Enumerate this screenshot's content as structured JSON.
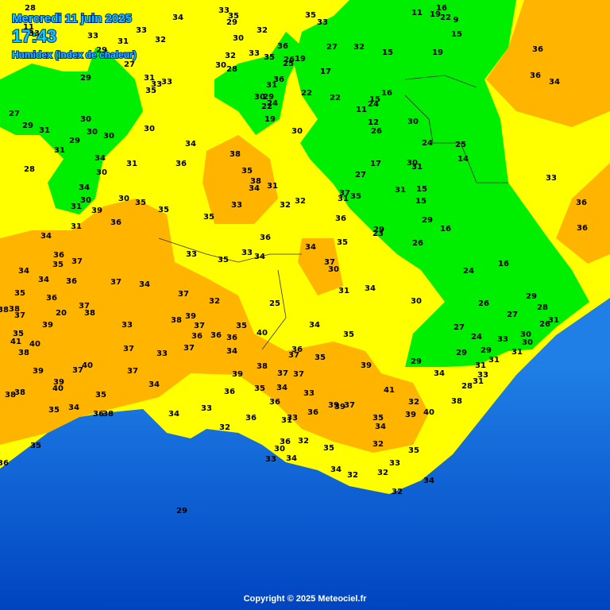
{
  "header": {
    "title": "Mercredi 11 juin 2025",
    "time": "17:43",
    "subtitle": "Humidex (Index de chaleur)"
  },
  "stations": [
    28,
    34,
    33,
    35,
    29,
    32,
    35,
    33,
    11,
    19,
    16,
    22,
    9,
    15,
    19,
    15,
    32,
    27,
    17,
    22,
    22,
    11,
    24,
    15,
    16,
    12,
    26,
    30,
    24,
    25,
    14,
    30,
    31,
    17,
    27,
    15,
    15,
    31,
    29,
    29,
    23,
    26,
    16,
    16,
    24,
    26,
    27,
    29,
    28,
    26,
    31,
    27,
    24,
    33,
    30,
    30,
    29,
    29,
    31,
    31,
    31,
    33,
    31,
    28,
    34,
    29,
    36,
    36,
    34,
    33,
    36,
    36,
    11,
    33,
    33,
    31,
    33,
    32,
    30,
    33,
    32,
    30,
    28,
    35,
    36,
    26,
    19,
    25,
    29,
    27,
    29,
    31,
    35,
    33,
    33,
    36,
    31,
    30,
    29,
    24,
    22,
    19,
    30,
    27,
    29,
    31,
    30,
    30,
    30,
    30,
    29,
    31,
    34,
    30,
    31,
    34,
    36,
    38,
    35,
    38,
    34,
    31,
    28,
    34,
    30,
    31,
    39,
    30,
    35,
    35,
    35,
    33,
    32,
    32,
    37,
    31,
    35,
    36,
    36,
    31,
    34,
    36,
    34,
    35,
    33,
    33,
    34,
    35,
    36,
    37,
    35,
    37,
    30,
    34,
    34,
    36,
    37,
    34,
    34,
    31,
    30,
    35,
    36,
    37,
    32,
    25,
    38,
    37,
    37,
    38,
    20,
    38,
    39,
    37,
    38,
    33,
    39,
    35,
    35,
    34,
    35,
    41,
    40,
    36,
    36,
    36,
    40,
    38,
    37,
    37,
    33,
    34,
    36,
    37,
    35,
    39,
    39,
    40,
    37,
    37,
    38,
    37,
    37,
    39,
    39,
    40,
    34,
    36,
    35,
    34,
    33,
    41,
    38,
    38,
    35,
    36,
    39,
    39,
    37,
    32,
    38,
    35,
    34,
    33,
    34,
    36,
    36,
    38,
    36,
    33,
    31,
    40,
    35,
    39,
    34,
    32,
    35,
    36,
    32,
    35,
    32,
    35,
    30,
    34,
    33,
    36,
    34,
    32,
    32,
    33,
    34,
    32,
    29
  ],
  "footer": {
    "copyright": "Copyright © 2025 Meteociel.fr"
  }
}
